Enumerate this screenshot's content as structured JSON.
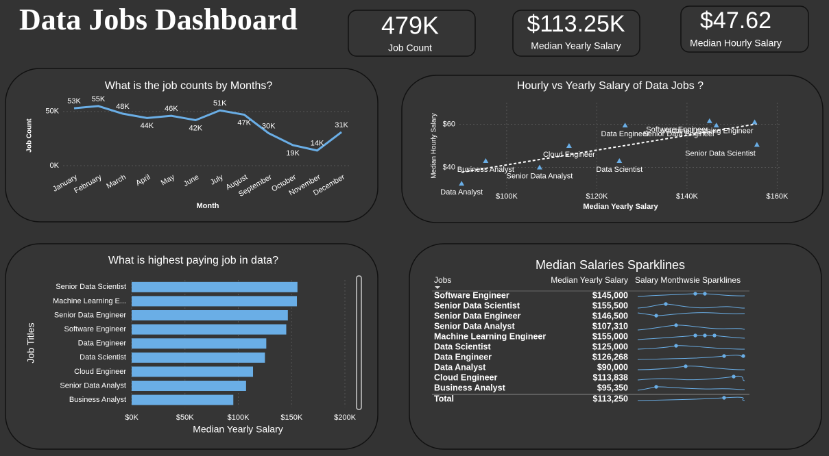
{
  "title": "Data Jobs Dashboard",
  "kpis": [
    {
      "value": "479K",
      "label": "Job Count"
    },
    {
      "value": "$113.25K",
      "label": "Median Yearly Salary"
    },
    {
      "value": "$47.62",
      "label": "Median Hourly Salary"
    }
  ],
  "chart_data": [
    {
      "type": "line",
      "title": "What is the job counts by Months?",
      "x_label": "Month",
      "y_label": "Job Count",
      "categories": [
        "January",
        "February",
        "March",
        "April",
        "May",
        "June",
        "July",
        "August",
        "September",
        "October",
        "November",
        "December"
      ],
      "values": [
        53000,
        55000,
        48000,
        44000,
        46000,
        42000,
        51000,
        47000,
        30000,
        19000,
        14000,
        31000
      ],
      "value_labels": [
        "53K",
        "55K",
        "48K",
        "44K",
        "46K",
        "42K",
        "51K",
        "47K",
        "30K",
        "19K",
        "14K",
        "31K"
      ],
      "color": "#6aaee6",
      "ylim": [
        0,
        60000
      ],
      "yticks": [
        {
          "value": 0,
          "label": "0K"
        },
        {
          "value": 50000,
          "label": "50K"
        }
      ],
      "grid": true
    },
    {
      "type": "scatter",
      "title": "Hourly vs Yearly Salary of Data Jobs ?",
      "x_label": "Median Yearly Salary",
      "y_label": "Median Hourly Salary",
      "labels": [
        "Software Engineer",
        "Machine Learning Engineer",
        "Senior Data Engineer",
        "Senior Data Scientist",
        "Data Engineer",
        "Cloud Engineer",
        "Data Scientist",
        "Business Analyst",
        "Senior Data Analyst",
        "Data Analyst"
      ],
      "x": [
        145000,
        155000,
        146500,
        155500,
        126268,
        113838,
        125000,
        95350,
        107310,
        90000
      ],
      "values": [
        61.5,
        61,
        59.5,
        50.5,
        59.5,
        50,
        43,
        43,
        40,
        32.5
      ],
      "color": "#6aaee6",
      "trendline": true,
      "xlim": [
        88000,
        161000
      ],
      "ylim": [
        30,
        70
      ],
      "xticks": [
        {
          "value": 100000,
          "label": "$100K"
        },
        {
          "value": 120000,
          "label": "$120K"
        },
        {
          "value": 140000,
          "label": "$140K"
        },
        {
          "value": 160000,
          "label": "$160K"
        }
      ],
      "yticks": [
        {
          "value": 40,
          "label": "$40"
        },
        {
          "value": 60,
          "label": "$60"
        }
      ],
      "grid": true
    },
    {
      "type": "hbar",
      "title": "What is highest paying job in data?",
      "x_label": "Median Yearly Salary",
      "y_label": "Job Titles",
      "categories": [
        "Senior Data Scientist",
        "Machine Learning E...",
        "Senior Data Engineer",
        "Software Engineer",
        "Data Engineer",
        "Data Scientist",
        "Cloud Engineer",
        "Senior Data Analyst",
        "Business Analyst"
      ],
      "values": [
        155500,
        155000,
        146500,
        145000,
        126268,
        125000,
        113838,
        107310,
        95350
      ],
      "color": "#6aaee6",
      "xlim": [
        0,
        200000
      ],
      "xticks": [
        {
          "value": 0,
          "label": "$0K"
        },
        {
          "value": 50000,
          "label": "$50K"
        },
        {
          "value": 100000,
          "label": "$100K"
        },
        {
          "value": 150000,
          "label": "$150K"
        },
        {
          "value": 200000,
          "label": "$200K"
        }
      ],
      "grid": true
    }
  ],
  "table": {
    "title": "Median Salaries Sparklines",
    "columns": [
      "Jobs",
      "Median Yearly Salary",
      "Salary Monthwsie Sparklines"
    ],
    "rows": [
      [
        "Software Engineer",
        "$145,000"
      ],
      [
        "Senior Data Scientist",
        "$155,500"
      ],
      [
        "Senior Data Engineer",
        "$146,500"
      ],
      [
        "Senior Data Analyst",
        "$107,310"
      ],
      [
        "Machine Learning Engineer",
        "$155,000"
      ],
      [
        "Data Scientist",
        "$125,000"
      ],
      [
        "Data Engineer",
        "$126,268"
      ],
      [
        "Data Analyst",
        "$90,000"
      ],
      [
        "Cloud Engineer",
        "$113,838"
      ],
      [
        "Business Analyst",
        "$95,350"
      ]
    ],
    "total": [
      "Total",
      "$113,250"
    ]
  }
}
